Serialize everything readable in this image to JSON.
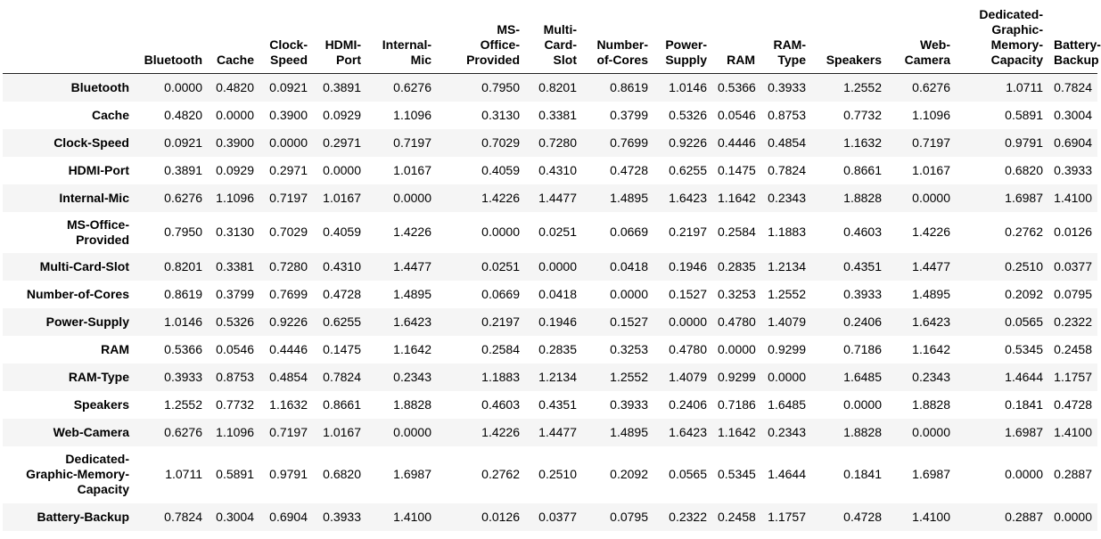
{
  "table": {
    "columns": [
      "Bluetooth",
      "Cache",
      "Clock-\nSpeed",
      "HDMI-\nPort",
      "Internal-\nMic",
      "MS-\nOffice-\nProvided",
      "Multi-\nCard-\nSlot",
      "Number-\nof-Cores",
      "Power-\nSupply",
      "RAM",
      "RAM-\nType",
      "Speakers",
      "Web-\nCamera",
      "Dedicated-\nGraphic-\nMemory-\nCapacity",
      "Battery-\nBackup"
    ],
    "rows": [
      {
        "label": "Bluetooth",
        "values": [
          "0.0000",
          "0.4820",
          "0.0921",
          "0.3891",
          "0.6276",
          "0.7950",
          "0.8201",
          "0.8619",
          "1.0146",
          "0.5366",
          "0.3933",
          "1.2552",
          "0.6276",
          "1.0711",
          "0.7824"
        ]
      },
      {
        "label": "Cache",
        "values": [
          "0.4820",
          "0.0000",
          "0.3900",
          "0.0929",
          "1.1096",
          "0.3130",
          "0.3381",
          "0.3799",
          "0.5326",
          "0.0546",
          "0.8753",
          "0.7732",
          "1.1096",
          "0.5891",
          "0.3004"
        ]
      },
      {
        "label": "Clock-Speed",
        "values": [
          "0.0921",
          "0.3900",
          "0.0000",
          "0.2971",
          "0.7197",
          "0.7029",
          "0.7280",
          "0.7699",
          "0.9226",
          "0.4446",
          "0.4854",
          "1.1632",
          "0.7197",
          "0.9791",
          "0.6904"
        ]
      },
      {
        "label": "HDMI-Port",
        "values": [
          "0.3891",
          "0.0929",
          "0.2971",
          "0.0000",
          "1.0167",
          "0.4059",
          "0.4310",
          "0.4728",
          "0.6255",
          "0.1475",
          "0.7824",
          "0.8661",
          "1.0167",
          "0.6820",
          "0.3933"
        ]
      },
      {
        "label": "Internal-Mic",
        "values": [
          "0.6276",
          "1.1096",
          "0.7197",
          "1.0167",
          "0.0000",
          "1.4226",
          "1.4477",
          "1.4895",
          "1.6423",
          "1.1642",
          "0.2343",
          "1.8828",
          "0.0000",
          "1.6987",
          "1.4100"
        ]
      },
      {
        "label": "MS-Office-\nProvided",
        "values": [
          "0.7950",
          "0.3130",
          "0.7029",
          "0.4059",
          "1.4226",
          "0.0000",
          "0.0251",
          "0.0669",
          "0.2197",
          "0.2584",
          "1.1883",
          "0.4603",
          "1.4226",
          "0.2762",
          "0.0126"
        ]
      },
      {
        "label": "Multi-Card-Slot",
        "values": [
          "0.8201",
          "0.3381",
          "0.7280",
          "0.4310",
          "1.4477",
          "0.0251",
          "0.0000",
          "0.0418",
          "0.1946",
          "0.2835",
          "1.2134",
          "0.4351",
          "1.4477",
          "0.2510",
          "0.0377"
        ]
      },
      {
        "label": "Number-of-Cores",
        "values": [
          "0.8619",
          "0.3799",
          "0.7699",
          "0.4728",
          "1.4895",
          "0.0669",
          "0.0418",
          "0.0000",
          "0.1527",
          "0.3253",
          "1.2552",
          "0.3933",
          "1.4895",
          "0.2092",
          "0.0795"
        ]
      },
      {
        "label": "Power-Supply",
        "values": [
          "1.0146",
          "0.5326",
          "0.9226",
          "0.6255",
          "1.6423",
          "0.2197",
          "0.1946",
          "0.1527",
          "0.0000",
          "0.4780",
          "1.4079",
          "0.2406",
          "1.6423",
          "0.0565",
          "0.2322"
        ]
      },
      {
        "label": "RAM",
        "values": [
          "0.5366",
          "0.0546",
          "0.4446",
          "0.1475",
          "1.1642",
          "0.2584",
          "0.2835",
          "0.3253",
          "0.4780",
          "0.0000",
          "0.9299",
          "0.7186",
          "1.1642",
          "0.5345",
          "0.2458"
        ]
      },
      {
        "label": "RAM-Type",
        "values": [
          "0.3933",
          "0.8753",
          "0.4854",
          "0.7824",
          "0.2343",
          "1.1883",
          "1.2134",
          "1.2552",
          "1.4079",
          "0.9299",
          "0.0000",
          "1.6485",
          "0.2343",
          "1.4644",
          "1.1757"
        ]
      },
      {
        "label": "Speakers",
        "values": [
          "1.2552",
          "0.7732",
          "1.1632",
          "0.8661",
          "1.8828",
          "0.4603",
          "0.4351",
          "0.3933",
          "0.2406",
          "0.7186",
          "1.6485",
          "0.0000",
          "1.8828",
          "0.1841",
          "0.4728"
        ]
      },
      {
        "label": "Web-Camera",
        "values": [
          "0.6276",
          "1.1096",
          "0.7197",
          "1.0167",
          "0.0000",
          "1.4226",
          "1.4477",
          "1.4895",
          "1.6423",
          "1.1642",
          "0.2343",
          "1.8828",
          "0.0000",
          "1.6987",
          "1.4100"
        ]
      },
      {
        "label": "Dedicated-\nGraphic-Memory-\nCapacity",
        "values": [
          "1.0711",
          "0.5891",
          "0.9791",
          "0.6820",
          "1.6987",
          "0.2762",
          "0.2510",
          "0.2092",
          "0.0565",
          "0.5345",
          "1.4644",
          "0.1841",
          "1.6987",
          "0.0000",
          "0.2887"
        ]
      },
      {
        "label": "Battery-Backup",
        "values": [
          "0.7824",
          "0.3004",
          "0.6904",
          "0.3933",
          "1.4100",
          "0.0126",
          "0.0377",
          "0.0795",
          "0.2322",
          "0.2458",
          "1.1757",
          "0.4728",
          "1.4100",
          "0.2887",
          "0.0000"
        ]
      }
    ]
  }
}
